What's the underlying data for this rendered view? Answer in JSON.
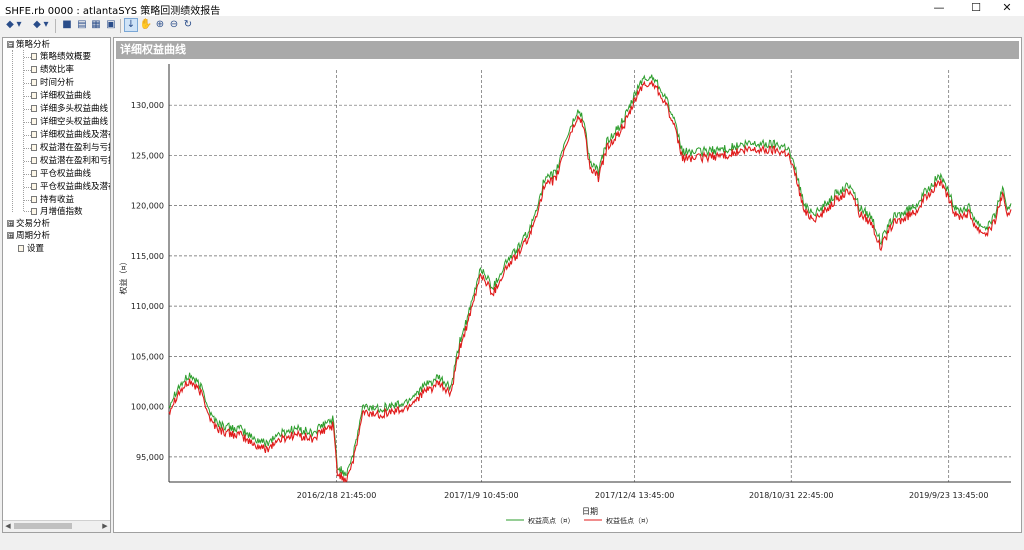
{
  "window": {
    "title": "SHFE.rb 0000 : atlantaSYS 策略回测绩效报告",
    "minimize": "—",
    "maximize": "☐",
    "close": "✕"
  },
  "toolbar": {
    "buttons": [
      {
        "name": "back-icon",
        "glyph": "◆"
      },
      {
        "name": "back-dropdown-icon",
        "glyph": "▾"
      },
      {
        "name": "forward-icon",
        "glyph": "◆"
      },
      {
        "name": "forward-dropdown-icon",
        "glyph": "▾"
      },
      {
        "name": "save-icon",
        "glyph": "■"
      },
      {
        "name": "export-icon",
        "glyph": "▤"
      },
      {
        "name": "print-icon",
        "glyph": "▦"
      },
      {
        "name": "table-icon",
        "glyph": "▣"
      },
      {
        "name": "pointer-icon",
        "glyph": "↓"
      },
      {
        "name": "pan-hand-icon",
        "glyph": "✋"
      },
      {
        "name": "zoom-in-icon",
        "glyph": "⊕"
      },
      {
        "name": "zoom-out-icon",
        "glyph": "⊖"
      },
      {
        "name": "reset-icon",
        "glyph": "↻"
      }
    ]
  },
  "sidebar": {
    "groups": [
      {
        "label": "策略分析",
        "expander": "⊟",
        "items": [
          "策略绩效概要",
          "绩效比率",
          "时间分析",
          "详细权益曲线",
          "详细多头权益曲线",
          "详细空头权益曲线",
          "详细权益曲线及潜在",
          "权益潜在盈利与亏损",
          "权益潜在盈利和亏损",
          "平仓权益曲线",
          "平仓权益曲线及潜在",
          "持有收益",
          "月增值指数"
        ]
      },
      {
        "label": "交易分析",
        "expander": "⊞",
        "items": []
      },
      {
        "label": "周期分析",
        "expander": "⊞",
        "items": []
      }
    ],
    "extra": "设置"
  },
  "chart_header": "详细权益曲线",
  "chart_data": {
    "type": "line",
    "ylabel": "权益（¤）",
    "xlabel": "日期",
    "ylim": [
      92500,
      133500
    ],
    "yticks": [
      95000,
      100000,
      105000,
      110000,
      115000,
      120000,
      125000,
      130000
    ],
    "ytick_labels": [
      "95,000",
      "100,000",
      "105,000",
      "110,000",
      "115,000",
      "120,000",
      "125,000",
      "130,000"
    ],
    "xticks": [
      {
        "label": "2016/2/18 21:45:00",
        "t": 0.199
      },
      {
        "label": "2017/1/9 10:45:00",
        "t": 0.371
      },
      {
        "label": "2017/12/4 13:45:00",
        "t": 0.553
      },
      {
        "label": "2018/10/31 22:45:00",
        "t": 0.739
      },
      {
        "label": "2019/9/23 13:45:00",
        "t": 0.926
      }
    ],
    "grid": true,
    "legend": "bottom-center",
    "series": [
      {
        "name": "权益高点（¤）",
        "color": "#2e9e2e"
      },
      {
        "name": "权益低点（¤）",
        "color": "#e01b1b"
      }
    ],
    "points": [
      [
        0.0,
        99800
      ],
      [
        0.01,
        101500
      ],
      [
        0.025,
        102800
      ],
      [
        0.04,
        101400
      ],
      [
        0.05,
        98800
      ],
      [
        0.06,
        97900
      ],
      [
        0.07,
        97600
      ],
      [
        0.085,
        97400
      ],
      [
        0.1,
        96500
      ],
      [
        0.115,
        96000
      ],
      [
        0.13,
        96900
      ],
      [
        0.15,
        97500
      ],
      [
        0.17,
        97000
      ],
      [
        0.185,
        97900
      ],
      [
        0.195,
        98400
      ],
      [
        0.2,
        93600
      ],
      [
        0.21,
        93000
      ],
      [
        0.22,
        95200
      ],
      [
        0.23,
        99600
      ],
      [
        0.25,
        99500
      ],
      [
        0.28,
        100000
      ],
      [
        0.3,
        101500
      ],
      [
        0.32,
        102500
      ],
      [
        0.335,
        101500
      ],
      [
        0.345,
        106000
      ],
      [
        0.36,
        110000
      ],
      [
        0.37,
        113500
      ],
      [
        0.385,
        111500
      ],
      [
        0.4,
        114000
      ],
      [
        0.415,
        115500
      ],
      [
        0.43,
        117500
      ],
      [
        0.445,
        122000
      ],
      [
        0.46,
        123000
      ],
      [
        0.47,
        126000
      ],
      [
        0.485,
        129000
      ],
      [
        0.492,
        128500
      ],
      [
        0.5,
        124000
      ],
      [
        0.51,
        123000
      ],
      [
        0.52,
        126000
      ],
      [
        0.535,
        127500
      ],
      [
        0.545,
        129000
      ],
      [
        0.56,
        132000
      ],
      [
        0.575,
        132500
      ],
      [
        0.59,
        130500
      ],
      [
        0.6,
        128000
      ],
      [
        0.61,
        125000
      ],
      [
        0.63,
        125000
      ],
      [
        0.66,
        125300
      ],
      [
        0.69,
        125800
      ],
      [
        0.72,
        125800
      ],
      [
        0.735,
        125500
      ],
      [
        0.745,
        123000
      ],
      [
        0.755,
        119500
      ],
      [
        0.77,
        119000
      ],
      [
        0.79,
        120700
      ],
      [
        0.81,
        121800
      ],
      [
        0.82,
        119500
      ],
      [
        0.835,
        118500
      ],
      [
        0.845,
        116000
      ],
      [
        0.86,
        118500
      ],
      [
        0.875,
        119000
      ],
      [
        0.89,
        120000
      ],
      [
        0.9,
        121200
      ],
      [
        0.915,
        122700
      ],
      [
        0.925,
        121000
      ],
      [
        0.935,
        119200
      ],
      [
        0.95,
        119500
      ],
      [
        0.96,
        118000
      ],
      [
        0.97,
        117500
      ],
      [
        0.98,
        118500
      ],
      [
        0.99,
        121500
      ],
      [
        0.995,
        119000
      ],
      [
        1.0,
        120000
      ]
    ]
  }
}
